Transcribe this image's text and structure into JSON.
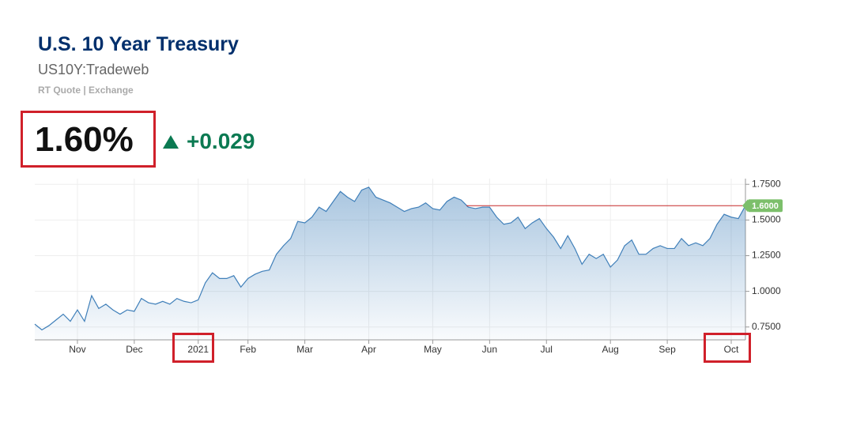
{
  "header": {
    "title": "U.S. 10 Year Treasury",
    "symbol": "US10Y:Tradeweb",
    "source": "RT Quote | Exchange",
    "price": "1.60%",
    "change": "+0.029"
  },
  "chart_data": {
    "type": "area",
    "categories": [
      null,
      null,
      null,
      null,
      null,
      null,
      "Nov",
      null,
      null,
      null,
      null,
      null,
      null,
      null,
      "Dec",
      null,
      null,
      null,
      null,
      null,
      null,
      null,
      null,
      "2021",
      null,
      null,
      null,
      null,
      null,
      null,
      "Feb",
      null,
      null,
      null,
      null,
      null,
      null,
      null,
      "Mar",
      null,
      null,
      null,
      null,
      null,
      null,
      null,
      null,
      "Apr",
      null,
      null,
      null,
      null,
      null,
      null,
      null,
      null,
      "May",
      null,
      null,
      null,
      null,
      null,
      null,
      null,
      "Jun",
      null,
      null,
      null,
      null,
      null,
      null,
      null,
      "Jul",
      null,
      null,
      null,
      null,
      null,
      null,
      null,
      null,
      "Aug",
      null,
      null,
      null,
      null,
      null,
      null,
      null,
      "Sep",
      null,
      null,
      null,
      null,
      null,
      null,
      null,
      null,
      "Oct",
      null,
      null
    ],
    "series": [
      {
        "name": "US10Y",
        "color": "#3f7fb9",
        "values": [
          0.77,
          0.73,
          0.76,
          0.8,
          0.84,
          0.79,
          0.87,
          0.79,
          0.97,
          0.88,
          0.91,
          0.87,
          0.84,
          0.87,
          0.86,
          0.95,
          0.92,
          0.91,
          0.93,
          0.91,
          0.95,
          0.93,
          0.92,
          0.94,
          1.06,
          1.13,
          1.09,
          1.09,
          1.11,
          1.03,
          1.09,
          1.12,
          1.14,
          1.15,
          1.26,
          1.32,
          1.37,
          1.49,
          1.48,
          1.52,
          1.59,
          1.56,
          1.63,
          1.7,
          1.66,
          1.63,
          1.71,
          1.73,
          1.66,
          1.64,
          1.62,
          1.59,
          1.56,
          1.58,
          1.59,
          1.62,
          1.58,
          1.57,
          1.63,
          1.66,
          1.64,
          1.59,
          1.58,
          1.59,
          1.59,
          1.52,
          1.47,
          1.48,
          1.52,
          1.44,
          1.48,
          1.51,
          1.44,
          1.38,
          1.3,
          1.39,
          1.3,
          1.19,
          1.26,
          1.23,
          1.26,
          1.17,
          1.22,
          1.32,
          1.36,
          1.26,
          1.26,
          1.3,
          1.32,
          1.3,
          1.3,
          1.37,
          1.32,
          1.34,
          1.32,
          1.37,
          1.47,
          1.54,
          1.52,
          1.51,
          1.6
        ]
      }
    ],
    "reference_line": {
      "value": 1.6,
      "label": "1.6000",
      "color": "#c62828",
      "label_color": "#7cbf6b"
    },
    "ylim": [
      0.66,
      1.79
    ],
    "yticks": [
      {
        "value": 0.75,
        "label": "0.7500"
      },
      {
        "value": 1.0,
        "label": "1.0000"
      },
      {
        "value": 1.25,
        "label": "1.2500"
      },
      {
        "value": 1.5,
        "label": "1.5000"
      },
      {
        "value": 1.75,
        "label": "1.7500"
      }
    ],
    "grid": true
  }
}
